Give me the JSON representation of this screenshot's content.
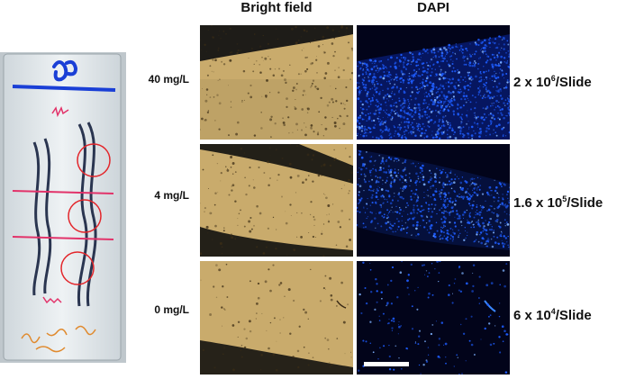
{
  "figure": {
    "columns": {
      "bright": "Bright field",
      "dapi": "DAPI"
    },
    "rows": [
      {
        "concentration": "40 mg/L",
        "density_base": "2 x 10",
        "density_exp": "6",
        "density_unit": "/Slide",
        "dapi_level": 0.9
      },
      {
        "concentration": "4 mg/L",
        "density_base": "1.6 x 10",
        "density_exp": "5",
        "density_unit": "/Slide",
        "dapi_level": 0.55
      },
      {
        "concentration": "0 mg/L",
        "density_base": "6 x 10",
        "density_exp": "4",
        "density_unit": "/Slide",
        "dapi_level": 0.12
      }
    ],
    "colors": {
      "slide_glass": "#dfe6ea",
      "marker_blue": "#1a3fd6",
      "marker_red": "#e2336a",
      "circle_red": "#e3262b",
      "bright_field": "#c9ab6c",
      "dapi_bg": "#02041a",
      "dapi_cell": "#1e5dff"
    }
  }
}
